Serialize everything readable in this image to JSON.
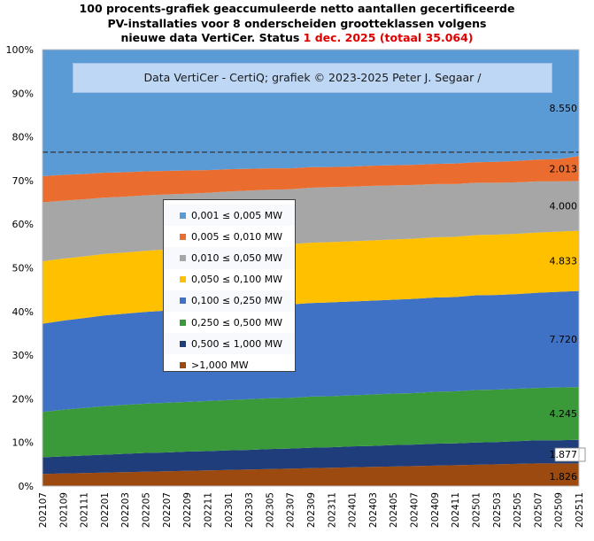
{
  "title": {
    "line1": "100 procents-grafiek geaccumuleerde netto aantallen gecertificeerde",
    "line2": "PV-installaties voor 8 onderscheiden grootteklassen volgens",
    "line3_prefix": "nieuwe data VertiCer. Status ",
    "line3_date": "1 dec. 2025",
    "line3_total": "(totaal 35.064)"
  },
  "credit": "Data VertiCer - CertiQ; grafiek © 2023-2025 Peter J. Segaar /",
  "chart_data": {
    "type": "area",
    "stacked": "percent",
    "ylim": [
      0,
      100
    ],
    "y_ticks": [
      "0%",
      "10%",
      "20%",
      "30%",
      "40%",
      "50%",
      "60%",
      "70%",
      "80%",
      "90%",
      "100%"
    ],
    "x_labels": [
      "202107",
      "202109",
      "202111",
      "202201",
      "202203",
      "202205",
      "202207",
      "202209",
      "202211",
      "202301",
      "202303",
      "202305",
      "202307",
      "202309",
      "202311",
      "202401",
      "202403",
      "202405",
      "202407",
      "202409",
      "202411",
      "202501",
      "202503",
      "202505",
      "202507",
      "202509",
      "202511"
    ],
    "reference_line_percent": 76.5,
    "series": [
      {
        "name": ">1,000 MW",
        "color": "#9c4a0f",
        "values": [
          2.8,
          2.9,
          3.0,
          3.1,
          3.2,
          3.3,
          3.4,
          3.5,
          3.6,
          3.7,
          3.8,
          3.9,
          4.0,
          4.1,
          4.2,
          4.3,
          4.4,
          4.5,
          4.6,
          4.7,
          4.8,
          4.9,
          5.0,
          5.1,
          5.2,
          5.2,
          5.2
        ]
      },
      {
        "name": "0,500 ≤  1,000 MW",
        "color": "#1f3d7a",
        "values": [
          3.8,
          3.9,
          4.0,
          4.1,
          4.2,
          4.3,
          4.3,
          4.4,
          4.4,
          4.5,
          4.5,
          4.6,
          4.6,
          4.7,
          4.7,
          4.8,
          4.8,
          4.9,
          4.9,
          5.0,
          5.0,
          5.1,
          5.1,
          5.2,
          5.3,
          5.3,
          5.4
        ]
      },
      {
        "name": "0,250 ≤  0,500 MW",
        "color": "#3a9a3a",
        "values": [
          10.4,
          10.7,
          10.9,
          11.1,
          11.2,
          11.3,
          11.4,
          11.4,
          11.5,
          11.5,
          11.6,
          11.6,
          11.6,
          11.7,
          11.7,
          11.7,
          11.8,
          11.8,
          11.8,
          11.9,
          11.9,
          12.0,
          12.0,
          12.0,
          12.0,
          12.1,
          12.1
        ]
      },
      {
        "name": "0,100 ≤  0,250 MW",
        "color": "#3f72c4",
        "values": [
          20.2,
          20.4,
          20.6,
          20.8,
          20.9,
          21.0,
          21.1,
          21.2,
          21.2,
          21.3,
          21.3,
          21.4,
          21.4,
          21.4,
          21.5,
          21.5,
          21.5,
          21.5,
          21.6,
          21.6,
          21.6,
          21.7,
          21.7,
          21.7,
          21.8,
          21.9,
          22.0
        ]
      },
      {
        "name": "0,050 ≤  0,100 MW",
        "color": "#ffc000",
        "values": [
          14.3,
          14.2,
          14.1,
          14.1,
          14.0,
          14.0,
          14.0,
          13.9,
          13.9,
          13.9,
          13.9,
          13.8,
          13.8,
          13.8,
          13.8,
          13.8,
          13.8,
          13.8,
          13.8,
          13.8,
          13.8,
          13.8,
          13.8,
          13.8,
          13.8,
          13.8,
          13.8
        ]
      },
      {
        "name": "0,010 ≤  0,050 MW",
        "color": "#a6a6a6",
        "values": [
          13.5,
          13.3,
          13.1,
          12.9,
          12.8,
          12.7,
          12.6,
          12.6,
          12.6,
          12.6,
          12.6,
          12.6,
          12.6,
          12.6,
          12.6,
          12.5,
          12.5,
          12.4,
          12.3,
          12.2,
          12.1,
          12.0,
          11.9,
          11.8,
          11.7,
          11.5,
          11.4
        ]
      },
      {
        "name": "0,005 ≤  0,010 MW",
        "color": "#ea6c2e",
        "values": [
          6.0,
          5.9,
          5.8,
          5.7,
          5.6,
          5.5,
          5.4,
          5.3,
          5.2,
          5.1,
          5.0,
          4.9,
          4.8,
          4.7,
          4.6,
          4.6,
          4.6,
          4.6,
          4.6,
          4.6,
          4.7,
          4.7,
          4.8,
          4.9,
          5.0,
          5.1,
          5.7
        ]
      },
      {
        "name": "0,001 ≤  0,005 MW",
        "color": "#5b9bd5",
        "values": [
          29.0,
          28.7,
          28.5,
          28.2,
          28.1,
          27.9,
          27.8,
          27.7,
          27.6,
          27.4,
          27.3,
          27.2,
          27.2,
          26.9,
          26.9,
          26.8,
          26.6,
          26.5,
          26.4,
          26.2,
          26.1,
          25.8,
          25.7,
          25.5,
          25.2,
          25.1,
          24.4
        ]
      }
    ],
    "end_labels": [
      "1.826",
      "1.877",
      "4.245",
      "7.720",
      "4.833",
      "4.000",
      "2.013",
      "8.550"
    ],
    "legend_order": [
      7,
      6,
      5,
      4,
      3,
      2,
      1,
      0
    ]
  }
}
